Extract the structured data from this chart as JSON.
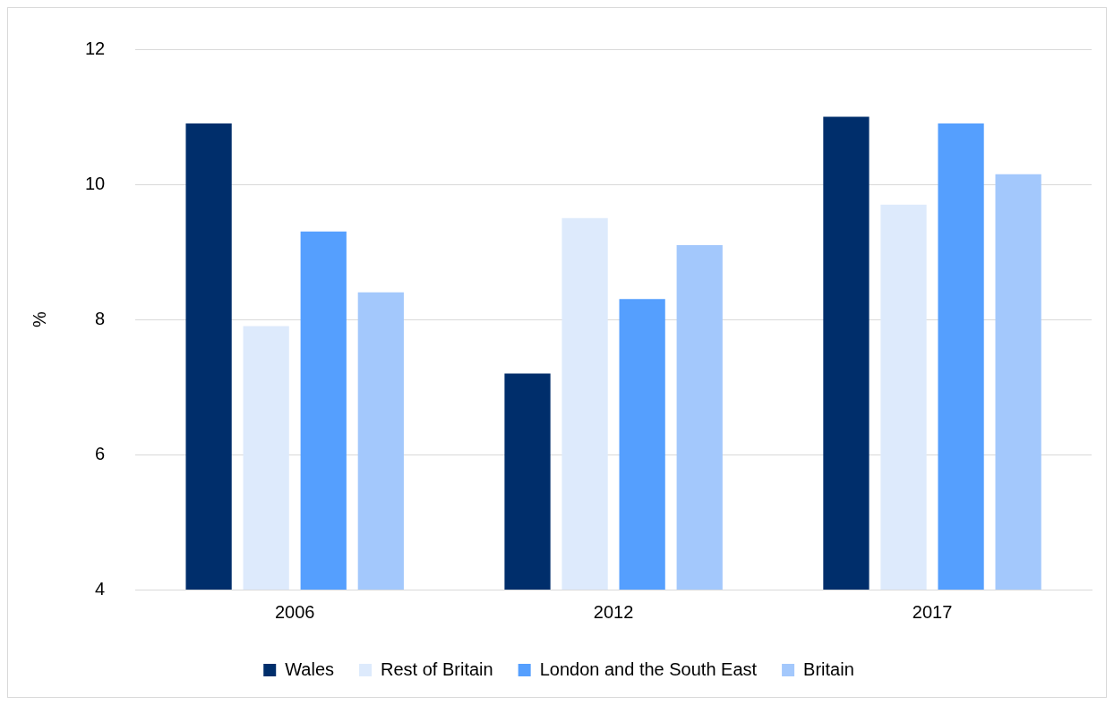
{
  "chart_data": {
    "type": "bar",
    "ylabel": "%",
    "categories": [
      "2006",
      "2012",
      "2017"
    ],
    "series": [
      {
        "name": "Wales",
        "color": "#002e6b",
        "values": [
          10.9,
          7.2,
          11.0
        ]
      },
      {
        "name": "Rest of Britain",
        "color": "#ddeafc",
        "values": [
          7.9,
          9.5,
          9.7
        ]
      },
      {
        "name": "London and the South East",
        "color": "#559ffe",
        "values": [
          9.3,
          8.3,
          10.9
        ]
      },
      {
        "name": "Britain",
        "color": "#a3c8fc",
        "values": [
          8.4,
          9.1,
          10.15
        ]
      }
    ],
    "ylim": [
      4,
      12
    ],
    "yticks": [
      4,
      6,
      8,
      10,
      12
    ],
    "grid": "y",
    "legend": "bottom"
  }
}
